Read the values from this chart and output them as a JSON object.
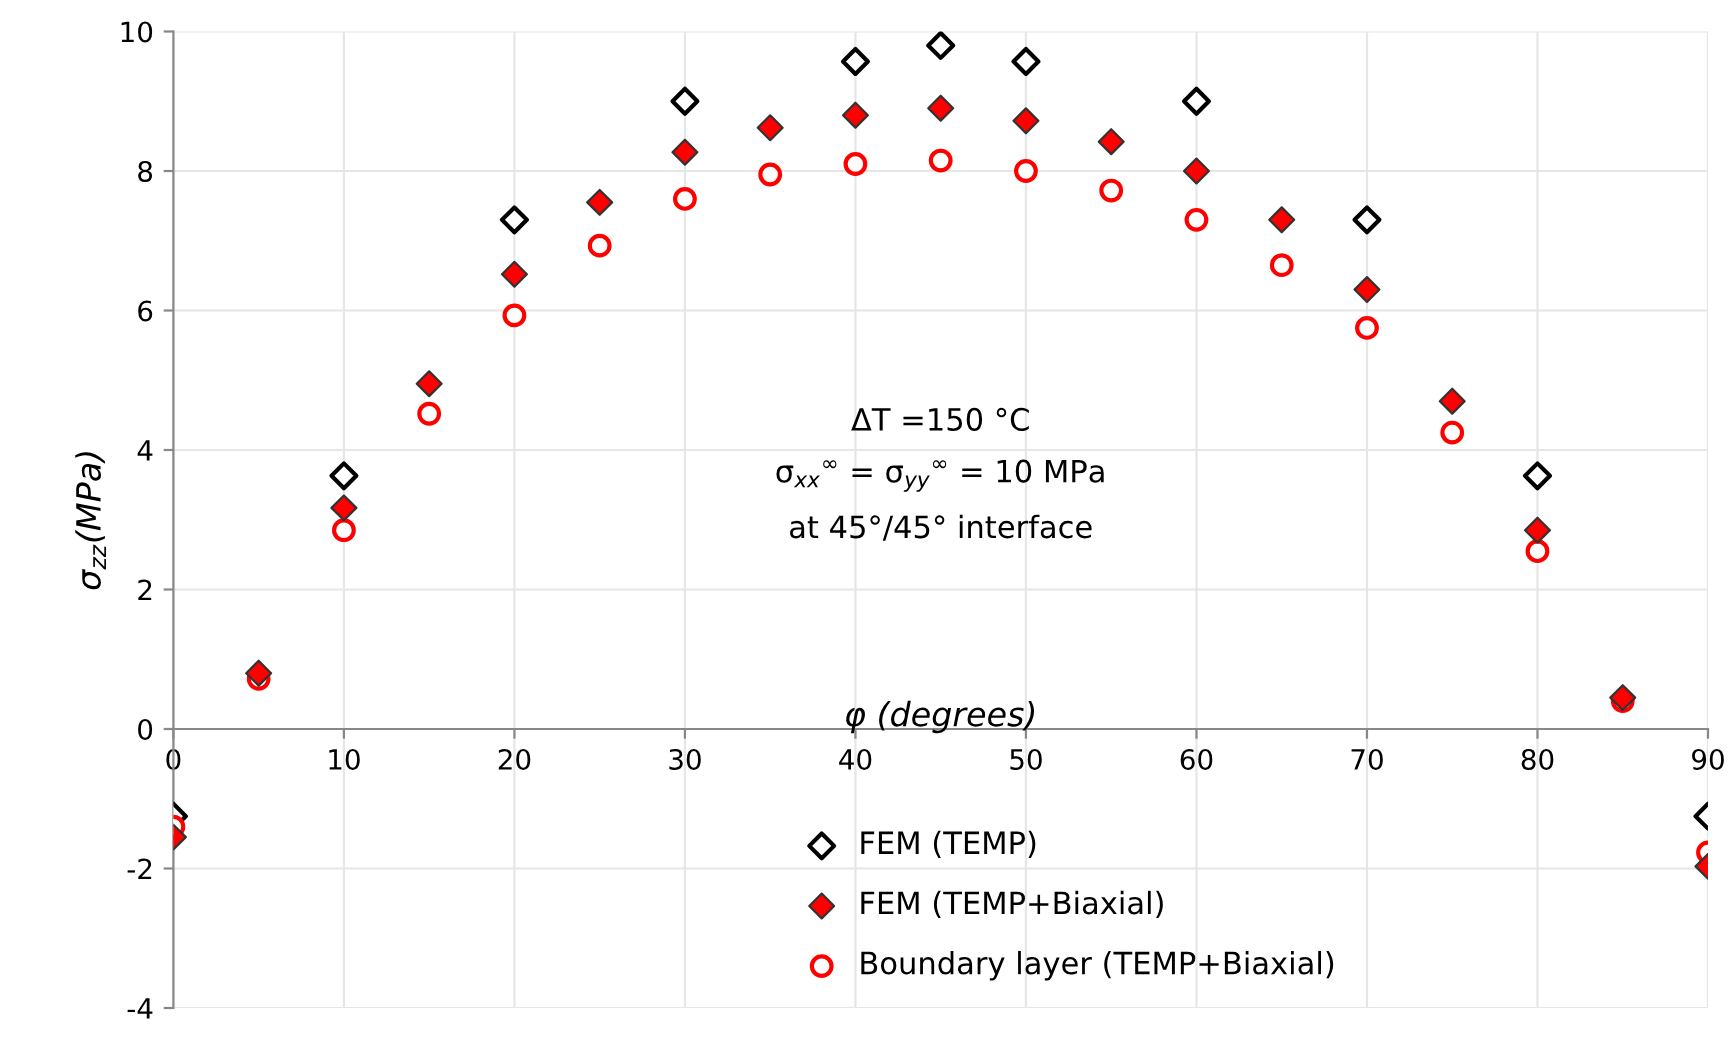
{
  "chart_data": {
    "type": "scatter",
    "xlabel": "φ (degrees)",
    "ylabel": "σ$_{zz}$(MPa)",
    "annotations": [
      "ΔT =150 °C",
      "σ$_{xx}$$^{∞}$ = σ$_{yy}$$^{∞}$ = 10 MPa",
      "at 45°/45° interface"
    ],
    "xlim": [
      0,
      90
    ],
    "xticks": [
      0,
      10,
      20,
      30,
      40,
      50,
      60,
      70,
      80,
      90
    ],
    "ylim": [
      -4,
      10
    ],
    "yticks": [
      -4,
      -2,
      0,
      2,
      4,
      6,
      8,
      10
    ],
    "grid": true,
    "legend": "bottom",
    "series": [
      {
        "name": "FEM (TEMP)",
        "color": "#000000",
        "marker": "diamond",
        "x": [
          0,
          5,
          10,
          20,
          30,
          40,
          45,
          50,
          60,
          70,
          80,
          85,
          90
        ],
        "values": [
          -1.25,
          null,
          3.63,
          7.3,
          9.0,
          9.57,
          9.8,
          9.57,
          9.0,
          7.3,
          3.63,
          null,
          -1.25
        ]
      },
      {
        "name": "FEM (TEMP+Biaxial)",
        "color": "#ff0000",
        "marker": "diamond",
        "x": [
          0,
          5,
          10,
          15,
          20,
          25,
          30,
          35,
          40,
          45,
          50,
          55,
          60,
          65,
          70,
          75,
          80,
          85,
          90
        ],
        "values": [
          -1.55,
          0.8,
          3.17,
          4.95,
          6.52,
          7.55,
          8.27,
          8.62,
          8.8,
          8.9,
          8.72,
          8.42,
          8.0,
          7.3,
          6.3,
          4.7,
          2.85,
          0.45,
          -1.97
        ]
      },
      {
        "name": "Boundary layer (TEMP+Biaxial)",
        "color": "#ff0000",
        "marker": "circle",
        "x": [
          0,
          5,
          10,
          15,
          20,
          25,
          30,
          35,
          40,
          45,
          50,
          55,
          60,
          65,
          70,
          75,
          80,
          85,
          90
        ],
        "values": [
          -1.4,
          0.72,
          2.85,
          4.52,
          5.93,
          6.93,
          7.6,
          7.95,
          8.1,
          8.15,
          8.0,
          7.72,
          7.3,
          6.65,
          5.75,
          4.25,
          2.55,
          0.4,
          -1.77
        ]
      }
    ]
  }
}
